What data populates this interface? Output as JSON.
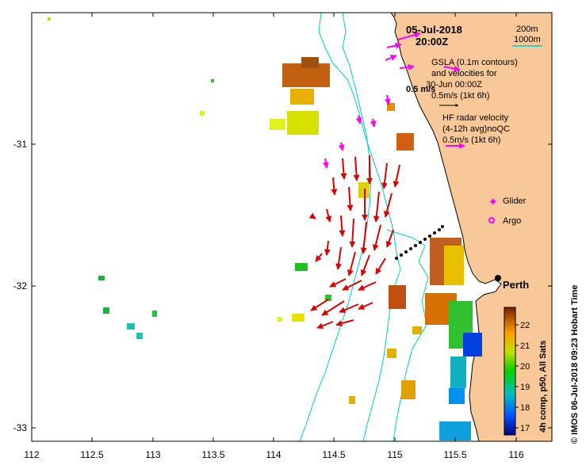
{
  "map": {
    "date": "05-Jul-2018",
    "time": "20:00Z",
    "legend_contours": {
      "label_200m": "200m",
      "label_1000m": "1000m"
    },
    "gsla_text": [
      "GSLA (0.1m contours)",
      "and velocities for",
      "30-Jun 00:00Z",
      "0.5m/s (1kt 6h)"
    ],
    "gsla_scale_label": "0.5 m/s",
    "hf_text": [
      "HF radar velocity",
      "(4-12h avg)noQC",
      "0.5m/s (1kt 6h)"
    ],
    "glider_label": "Glider",
    "argo_label": "Argo",
    "city_label": "Perth",
    "credit": "© IMOS 06-Jul-2018 09:23 Hobart Time",
    "colorbar_title": "4h comp, p50, All Sats",
    "colors": {
      "land": "#f9c898",
      "cyan": "#00cccc",
      "magenta": "#ff00ff",
      "arrow": "#dd0000"
    }
  },
  "axes": {
    "x_ticks": [
      "112",
      "112.5",
      "113",
      "113.5",
      "114",
      "114.5",
      "115",
      "115.5",
      "116"
    ],
    "y_ticks": [
      "-31",
      "-32",
      "-33"
    ],
    "x_range": [
      112,
      116.3
    ],
    "y_range": [
      -33.1,
      -30.08
    ]
  },
  "colorbar": {
    "ticks": [
      "22",
      "21",
      "20",
      "19",
      "18",
      "17"
    ],
    "range": [
      16.6,
      22.7
    ]
  }
}
